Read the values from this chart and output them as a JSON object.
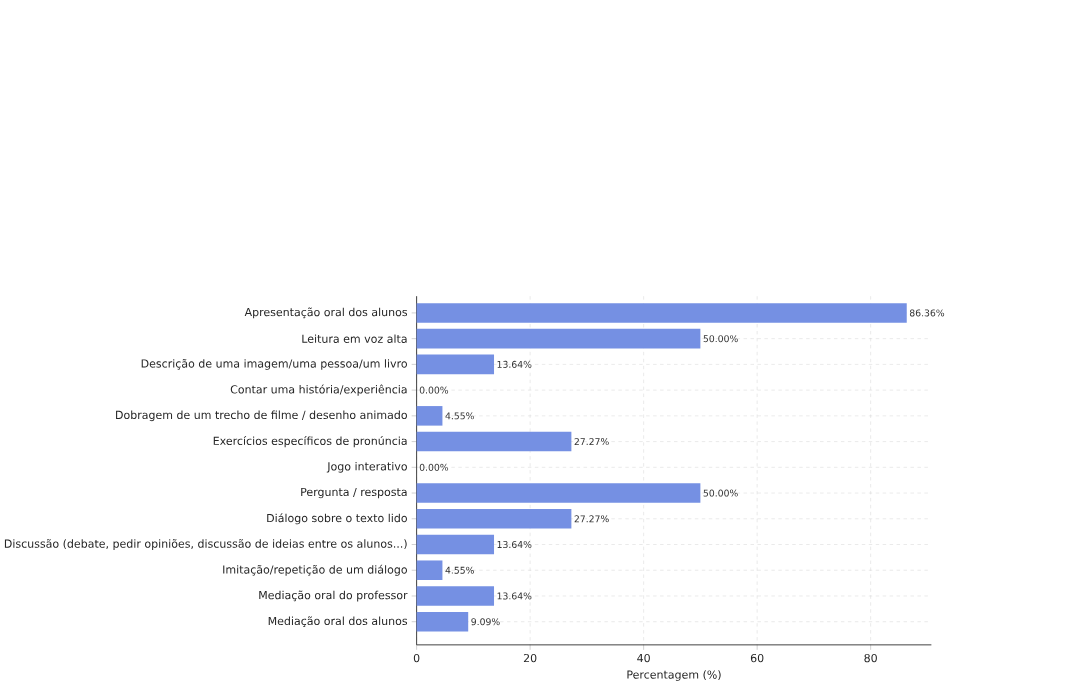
{
  "chart_data": {
    "type": "bar",
    "orientation": "horizontal",
    "xlabel": "Percentagem (%)",
    "categories": [
      "Apresentação oral dos alunos",
      "Leitura em voz alta",
      "Descrição de uma imagem/uma pessoa/um livro",
      "Contar uma história/experiência",
      "Dobragem de um trecho de filme / desenho animado",
      "Exercícios específicos de pronúncia",
      "Jogo interativo",
      "Pergunta / resposta",
      "Diálogo sobre o texto lido",
      "Discussão (debate, pedir opiniões, discussão de ideias entre os alunos...)",
      "Imitação/repetição de um diálogo",
      "Mediação oral do professor",
      "Mediação oral dos alunos"
    ],
    "values": [
      86.36,
      50.0,
      13.64,
      0.0,
      4.55,
      27.27,
      0.0,
      50.0,
      27.27,
      13.64,
      4.55,
      13.64,
      9.09
    ],
    "value_labels": [
      "86.36%",
      "50.00%",
      "13.64%",
      "0.00%",
      "4.55%",
      "27.27%",
      "0.00%",
      "50.00%",
      "27.27%",
      "13.64%",
      "4.55%",
      "13.64%",
      "9.09%"
    ],
    "color": "#7590e3",
    "xlim": [
      0,
      90.7
    ],
    "xticks": [
      0,
      20,
      40,
      60,
      80
    ],
    "grid": true
  }
}
